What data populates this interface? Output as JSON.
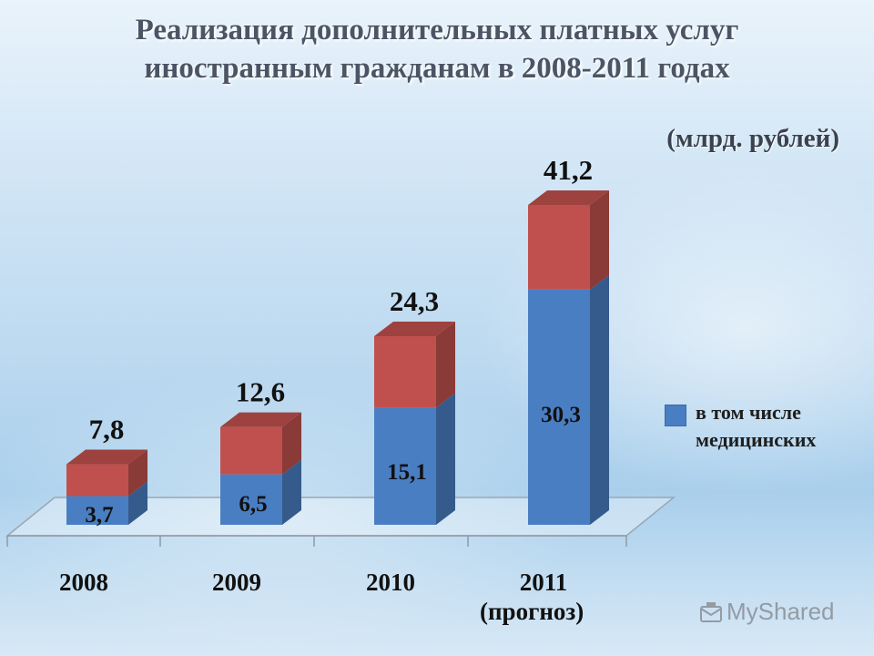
{
  "header": {
    "title_line1": "Реализация дополнительных платных услуг",
    "title_line2": "иностранным гражданам в 2008-2011 годах",
    "unit": "(млрд. рублей)"
  },
  "chart_data": {
    "type": "bar",
    "stacked": true,
    "categories": [
      "2008",
      "2009",
      "2010",
      "2011"
    ],
    "category_note": "(прогноз)",
    "totals": [
      7.8,
      12.6,
      24.3,
      41.2
    ],
    "total_labels": [
      "7,8",
      "12,6",
      "24,3",
      "41,2"
    ],
    "medical": [
      3.7,
      6.5,
      15.1,
      30.3
    ],
    "medical_labels": [
      "3,7",
      "6,5",
      "15,1",
      "30,3"
    ],
    "series": [
      {
        "name": "в том числе медицинских",
        "values": [
          3.7,
          6.5,
          15.1,
          30.3
        ],
        "color": "#4a7ec2"
      },
      {
        "name": "",
        "values": [
          4.1,
          6.1,
          9.2,
          10.9
        ],
        "color": "#c0504d"
      }
    ],
    "ylim": [
      0,
      41.2
    ],
    "grid": false,
    "legend": "right"
  },
  "legend": {
    "label": "в том числе медицинских"
  },
  "watermark": {
    "text": "MyShared",
    "icon": "mail-icon"
  }
}
